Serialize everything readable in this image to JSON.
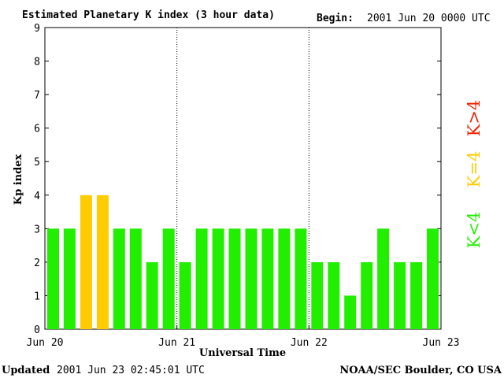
{
  "header": {
    "title": "Estimated Planetary K index (3 hour data)",
    "begin_label": "Begin:",
    "begin_value": "2001 Jun 20 0000 UTC"
  },
  "footer": {
    "updated_label": "Updated",
    "updated_value": "2001 Jun 23 02:45:01 UTC",
    "source": "NOAA/SEC Boulder, CO USA"
  },
  "legend": [
    {
      "text": "K<4",
      "color": "#22ee00"
    },
    {
      "text": "K=4",
      "color": "#ffcc00"
    },
    {
      "text": "K>4",
      "color": "#ee2200"
    }
  ],
  "chart_data": {
    "type": "bar",
    "title": "Estimated Planetary K index (3 hour data)",
    "xlabel": "Universal Time",
    "ylabel": "Kp index",
    "ylim": [
      0,
      9
    ],
    "yticks": [
      "0",
      "1",
      "2",
      "3",
      "4",
      "5",
      "6",
      "7",
      "8",
      "9"
    ],
    "xticks": [
      "Jun 20",
      "Jun 21",
      "Jun 22",
      "Jun 23"
    ],
    "day_separators": [
      "Jun 21",
      "Jun 22"
    ],
    "values": [
      3,
      3,
      4,
      4,
      3,
      3,
      2,
      3,
      2,
      3,
      3,
      3,
      3,
      3,
      3,
      3,
      2,
      2,
      1,
      2,
      3,
      2,
      2,
      3
    ],
    "colors": {
      "below_4": "#22ee00",
      "equal_4": "#ffcc00",
      "above_4": "#ee2200"
    }
  }
}
